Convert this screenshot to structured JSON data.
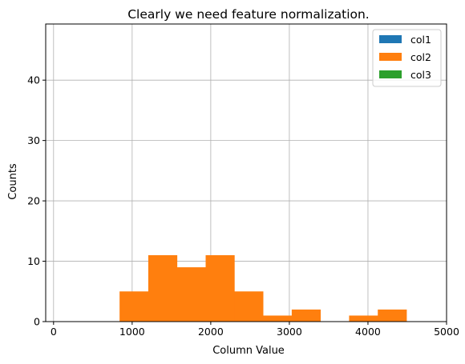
{
  "chart_data": {
    "type": "bar",
    "title": "Clearly we need feature normalization.",
    "xlabel": "Column Value",
    "ylabel": "Counts",
    "xlim": [
      -100,
      5000
    ],
    "ylim": [
      0,
      49.3
    ],
    "xticks": [
      0,
      1000,
      2000,
      3000,
      4000,
      5000
    ],
    "yticks": [
      0,
      10,
      20,
      30,
      40
    ],
    "grid": true,
    "legend_position": "top-right",
    "series": [
      {
        "name": "col1",
        "color": "#1f77b4",
        "bins": [],
        "counts": []
      },
      {
        "name": "col2",
        "color": "#ff7f0e",
        "bins": [
          840,
          1205,
          1570,
          1935,
          2300,
          2665,
          3030,
          3395,
          3760,
          4125,
          4490
        ],
        "counts": [
          5,
          11,
          9,
          11,
          5,
          1,
          2,
          0,
          1,
          2
        ]
      },
      {
        "name": "col3",
        "color": "#2ca02c",
        "bins": [],
        "counts": []
      }
    ]
  }
}
